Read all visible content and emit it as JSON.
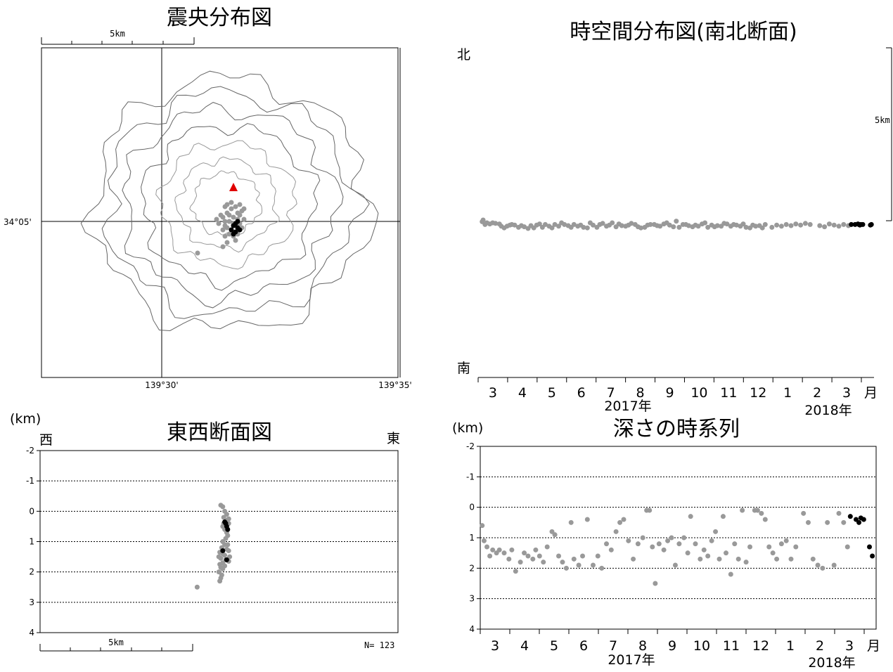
{
  "chart_data": [
    {
      "type": "scatter",
      "title": "震央分布図",
      "scale_label": "5km",
      "lat_label": "34°05'",
      "lon_labels": [
        "139°30'",
        "139°35'"
      ],
      "legend": "red triangle marks the summit",
      "summit": {
        "x": 3.4,
        "y": 1.6
      },
      "older_events": [
        [
          3.1,
          -0.3
        ],
        [
          3.0,
          -0.2
        ],
        [
          3.3,
          -0.4
        ],
        [
          3.5,
          -0.2
        ],
        [
          3.2,
          0.0
        ],
        [
          3.6,
          0.1
        ],
        [
          3.4,
          0.2
        ],
        [
          2.9,
          0.2
        ],
        [
          3.1,
          0.4
        ],
        [
          3.6,
          0.4
        ],
        [
          3.3,
          0.6
        ],
        [
          3.0,
          0.7
        ],
        [
          3.5,
          0.7
        ],
        [
          3.8,
          0.5
        ],
        [
          3.7,
          -0.1
        ],
        [
          3.2,
          -0.6
        ],
        [
          2.8,
          0.3
        ],
        [
          3.4,
          -0.7
        ],
        [
          3.9,
          0.1
        ],
        [
          3.0,
          0.0
        ],
        [
          3.7,
          0.3
        ],
        [
          3.1,
          0.8
        ],
        [
          2.7,
          -0.1
        ],
        [
          3.5,
          -0.5
        ],
        [
          3.8,
          -0.3
        ],
        [
          2.9,
          -0.4
        ],
        [
          3.3,
          0.9
        ],
        [
          3.6,
          -0.6
        ],
        [
          3.2,
          0.3
        ],
        [
          3.4,
          -0.1
        ],
        [
          2.6,
          0.1
        ],
        [
          3.9,
          0.6
        ],
        [
          3.0,
          -0.7
        ],
        [
          3.7,
          0.8
        ],
        [
          1.7,
          -1.5
        ],
        [
          2.9,
          -1.2
        ],
        [
          3.5,
          -0.9
        ],
        [
          3.1,
          -1.0
        ]
      ],
      "recent_events": [
        [
          3.4,
          -0.2
        ],
        [
          3.5,
          -0.1
        ],
        [
          3.6,
          -0.3
        ],
        [
          3.3,
          -0.4
        ],
        [
          3.5,
          -0.5
        ],
        [
          3.7,
          -0.4
        ],
        [
          3.6,
          0.0
        ],
        [
          3.4,
          -0.6
        ]
      ]
    },
    {
      "type": "scatter",
      "title": "時空間分布図(南北断面)",
      "north": "北",
      "south": "南",
      "scale_label": "5km",
      "month_labels": [
        "3",
        "4",
        "5",
        "6",
        "7",
        "8",
        "9",
        "10",
        "11",
        "12",
        "1",
        "2",
        "3",
        "月"
      ],
      "year_labels": [
        "2017年",
        "2018年"
      ],
      "older_events": [
        [
          0.02,
          -0.2
        ],
        [
          0.03,
          -0.5
        ],
        [
          0.05,
          0.3
        ],
        [
          0.07,
          0.0
        ],
        [
          0.1,
          0.2
        ],
        [
          0.13,
          0.0
        ],
        [
          0.16,
          0.1
        ],
        [
          0.2,
          0.2
        ],
        [
          0.22,
          0.6
        ],
        [
          0.25,
          0.9
        ],
        [
          0.28,
          0.6
        ],
        [
          0.31,
          0.4
        ],
        [
          0.33,
          0.3
        ],
        [
          0.36,
          0.4
        ],
        [
          0.4,
          0.8
        ],
        [
          0.43,
          0.5
        ],
        [
          0.46,
          0.7
        ],
        [
          0.5,
          1.0
        ],
        [
          0.53,
          0.5
        ],
        [
          0.56,
          0.9
        ],
        [
          0.59,
          0.4
        ],
        [
          0.62,
          0.2
        ],
        [
          0.65,
          0.8
        ],
        [
          0.68,
          0.3
        ],
        [
          0.72,
          0.6
        ],
        [
          0.75,
          0.9
        ],
        [
          0.78,
          0.3
        ],
        [
          0.82,
          0.6
        ],
        [
          0.85,
          0.0
        ],
        [
          0.88,
          0.3
        ],
        [
          0.92,
          0.5
        ],
        [
          0.95,
          0.8
        ],
        [
          0.98,
          0.3
        ],
        [
          1.02,
          0.6
        ],
        [
          1.05,
          0.4
        ],
        [
          1.08,
          0.8
        ],
        [
          1.12,
          0.9
        ],
        [
          1.15,
          0.0
        ],
        [
          1.18,
          0.4
        ],
        [
          1.22,
          0.8
        ],
        [
          1.25,
          0.3
        ],
        [
          1.28,
          0.1
        ],
        [
          1.32,
          0.6
        ],
        [
          1.35,
          0.4
        ],
        [
          1.38,
          0.0
        ],
        [
          1.42,
          0.7
        ],
        [
          1.45,
          0.2
        ],
        [
          1.48,
          0.5
        ],
        [
          1.52,
          0.6
        ],
        [
          1.55,
          0.4
        ],
        [
          1.58,
          0.1
        ],
        [
          1.62,
          0.3
        ],
        [
          1.65,
          0.7
        ],
        [
          1.68,
          0.9
        ],
        [
          1.72,
          0.8
        ],
        [
          1.75,
          0.4
        ],
        [
          1.78,
          0.3
        ],
        [
          1.82,
          0.3
        ],
        [
          1.85,
          0.5
        ],
        [
          1.88,
          0.6
        ],
        [
          1.92,
          0.2
        ],
        [
          1.95,
          0.0
        ],
        [
          1.98,
          0.4
        ],
        [
          2.02,
          0.7
        ],
        [
          2.05,
          -0.3
        ],
        [
          2.08,
          0.8
        ],
        [
          2.12,
          0.3
        ],
        [
          2.15,
          0.3
        ],
        [
          2.18,
          0.5
        ],
        [
          2.22,
          0.7
        ],
        [
          2.25,
          0.4
        ],
        [
          2.28,
          0.6
        ],
        [
          2.32,
          0.2
        ],
        [
          2.35,
          0.0
        ],
        [
          2.38,
          0.8
        ],
        [
          2.42,
          0.4
        ],
        [
          2.45,
          0.7
        ],
        [
          2.48,
          0.5
        ],
        [
          2.52,
          0.6
        ],
        [
          2.55,
          0.1
        ],
        [
          2.58,
          0.2
        ],
        [
          2.62,
          0.6
        ],
        [
          2.65,
          0.3
        ],
        [
          2.68,
          0.4
        ],
        [
          2.72,
          0.6
        ],
        [
          2.75,
          0.2
        ],
        [
          2.78,
          0.8
        ],
        [
          2.82,
          0.9
        ],
        [
          2.85,
          0.4
        ],
        [
          2.88,
          0.6
        ],
        [
          2.92,
          0.5
        ],
        [
          2.95,
          0.9
        ],
        [
          2.98,
          0.3
        ],
        [
          3.05,
          0.8
        ],
        [
          3.1,
          0.4
        ],
        [
          3.15,
          0.6
        ],
        [
          3.2,
          0.3
        ],
        [
          3.25,
          0.5
        ],
        [
          3.3,
          0.2
        ],
        [
          3.35,
          0.4
        ],
        [
          3.4,
          0.1
        ],
        [
          3.45,
          0.3
        ],
        [
          3.55,
          0.5
        ],
        [
          3.6,
          0.7
        ],
        [
          3.65,
          0.2
        ],
        [
          3.7,
          0.4
        ],
        [
          3.75,
          0.6
        ],
        [
          3.8,
          0.3
        ],
        [
          3.85,
          0.5
        ]
      ],
      "recent_events": [
        [
          3.88,
          0.3
        ],
        [
          3.92,
          0.3
        ],
        [
          3.95,
          0.2
        ],
        [
          3.96,
          0.3
        ],
        [
          3.97,
          0.4
        ],
        [
          3.98,
          0.3
        ],
        [
          4.0,
          0.3
        ],
        [
          4.08,
          0.4
        ],
        [
          4.09,
          0.3
        ]
      ]
    },
    {
      "type": "scatter",
      "title": "東西断面図",
      "unit": "(km)",
      "west": "西",
      "east": "東",
      "scale_label": "5km",
      "count_label": "N= 123",
      "y_ticks": [
        "-2",
        "-1",
        "0",
        "1",
        "2",
        "3",
        "4"
      ],
      "ylim": [
        -2,
        4
      ],
      "older_events": [
        [
          3.0,
          -0.2
        ],
        [
          3.1,
          -0.15
        ],
        [
          3.2,
          0.0
        ],
        [
          3.15,
          0.2
        ],
        [
          3.3,
          0.3
        ],
        [
          3.4,
          0.4
        ],
        [
          3.1,
          0.5
        ],
        [
          3.2,
          0.6
        ],
        [
          3.3,
          0.7
        ],
        [
          3.35,
          0.8
        ],
        [
          3.25,
          0.9
        ],
        [
          3.1,
          1.0
        ],
        [
          3.2,
          1.1
        ],
        [
          3.05,
          1.2
        ],
        [
          3.3,
          1.25
        ],
        [
          3.4,
          1.3
        ],
        [
          2.95,
          1.35
        ],
        [
          3.1,
          1.4
        ],
        [
          3.2,
          1.45
        ],
        [
          2.9,
          1.5
        ],
        [
          3.0,
          1.55
        ],
        [
          3.25,
          1.6
        ],
        [
          3.4,
          1.65
        ],
        [
          3.1,
          1.7
        ],
        [
          2.95,
          1.75
        ],
        [
          3.2,
          1.8
        ],
        [
          3.0,
          1.85
        ],
        [
          3.1,
          1.9
        ],
        [
          2.9,
          2.0
        ],
        [
          3.05,
          2.1
        ],
        [
          3.0,
          2.2
        ],
        [
          2.95,
          2.3
        ],
        [
          3.3,
          0.1
        ],
        [
          3.4,
          0.25
        ],
        [
          3.15,
          0.4
        ],
        [
          3.35,
          1.1
        ],
        [
          3.45,
          1.5
        ],
        [
          1.8,
          2.5
        ]
      ],
      "recent_events": [
        [
          3.2,
          0.35
        ],
        [
          3.3,
          0.5
        ],
        [
          3.25,
          0.4
        ],
        [
          3.35,
          0.6
        ],
        [
          3.1,
          1.3
        ],
        [
          3.3,
          1.6
        ]
      ]
    },
    {
      "type": "scatter",
      "title": "深さの時系列",
      "unit": "(km)",
      "y_ticks": [
        "-2",
        "-1",
        "0",
        "1",
        "2",
        "3",
        "4"
      ],
      "ylim": [
        -2,
        4
      ],
      "month_labels": [
        "3",
        "4",
        "5",
        "6",
        "7",
        "8",
        "9",
        "10",
        "11",
        "12",
        "1",
        "2",
        "3",
        "月"
      ],
      "year_labels": [
        "2017年",
        "2018年"
      ],
      "older_events": [
        [
          0.02,
          0.6
        ],
        [
          0.04,
          1.1
        ],
        [
          0.07,
          1.3
        ],
        [
          0.1,
          1.6
        ],
        [
          0.13,
          1.4
        ],
        [
          0.17,
          1.5
        ],
        [
          0.2,
          1.4
        ],
        [
          0.25,
          1.5
        ],
        [
          0.3,
          1.7
        ],
        [
          0.33,
          1.4
        ],
        [
          0.37,
          2.1
        ],
        [
          0.42,
          1.8
        ],
        [
          0.46,
          1.5
        ],
        [
          0.5,
          1.6
        ],
        [
          0.55,
          1.7
        ],
        [
          0.58,
          1.4
        ],
        [
          0.62,
          1.6
        ],
        [
          0.66,
          1.8
        ],
        [
          0.7,
          1.3
        ],
        [
          0.75,
          0.8
        ],
        [
          0.78,
          0.9
        ],
        [
          0.82,
          1.6
        ],
        [
          0.86,
          1.8
        ],
        [
          0.9,
          2.0
        ],
        [
          0.95,
          0.5
        ],
        [
          0.98,
          1.7
        ],
        [
          1.03,
          1.9
        ],
        [
          1.07,
          1.6
        ],
        [
          1.12,
          0.4
        ],
        [
          1.18,
          1.9
        ],
        [
          1.23,
          1.6
        ],
        [
          1.27,
          2.0
        ],
        [
          1.32,
          1.2
        ],
        [
          1.37,
          1.4
        ],
        [
          1.42,
          0.8
        ],
        [
          1.46,
          0.5
        ],
        [
          1.5,
          0.4
        ],
        [
          1.55,
          1.1
        ],
        [
          1.6,
          1.7
        ],
        [
          1.65,
          1.2
        ],
        [
          1.7,
          1.0
        ],
        [
          1.74,
          0.1
        ],
        [
          1.77,
          0.1
        ],
        [
          1.8,
          1.3
        ],
        [
          1.83,
          2.5
        ],
        [
          1.87,
          1.2
        ],
        [
          1.92,
          1.4
        ],
        [
          1.96,
          1.1
        ],
        [
          2.0,
          1.0
        ],
        [
          2.04,
          1.9
        ],
        [
          2.08,
          1.2
        ],
        [
          2.13,
          1.0
        ],
        [
          2.17,
          1.5
        ],
        [
          2.2,
          0.3
        ],
        [
          2.25,
          1.2
        ],
        [
          2.3,
          1.7
        ],
        [
          2.34,
          1.4
        ],
        [
          2.38,
          1.6
        ],
        [
          2.42,
          1.1
        ],
        [
          2.46,
          0.8
        ],
        [
          2.5,
          1.7
        ],
        [
          2.54,
          0.3
        ],
        [
          2.57,
          1.5
        ],
        [
          2.62,
          2.2
        ],
        [
          2.66,
          1.2
        ],
        [
          2.7,
          1.7
        ],
        [
          2.74,
          0.1
        ],
        [
          2.78,
          1.8
        ],
        [
          2.82,
          1.3
        ],
        [
          2.87,
          0.1
        ],
        [
          2.9,
          0.1
        ],
        [
          2.94,
          0.2
        ],
        [
          2.98,
          0.4
        ],
        [
          3.02,
          1.3
        ],
        [
          3.06,
          1.5
        ],
        [
          3.1,
          1.7
        ],
        [
          3.15,
          1.2
        ],
        [
          3.2,
          1.1
        ],
        [
          3.25,
          1.7
        ],
        [
          3.3,
          1.3
        ],
        [
          3.38,
          0.2
        ],
        [
          3.43,
          0.5
        ],
        [
          3.48,
          1.7
        ],
        [
          3.53,
          1.9
        ],
        [
          3.58,
          2.0
        ],
        [
          3.63,
          0.5
        ],
        [
          3.7,
          1.9
        ],
        [
          3.75,
          0.2
        ],
        [
          3.8,
          0.5
        ],
        [
          3.84,
          1.3
        ]
      ],
      "recent_events": [
        [
          3.87,
          0.3
        ],
        [
          3.93,
          0.4
        ],
        [
          3.96,
          0.5
        ],
        [
          3.98,
          0.35
        ],
        [
          4.01,
          0.4
        ],
        [
          4.07,
          1.3
        ],
        [
          4.1,
          1.6
        ]
      ]
    }
  ],
  "colors": {
    "older": "#999999",
    "recent": "#000000",
    "summit": "#e00000",
    "contour": "#666666"
  }
}
